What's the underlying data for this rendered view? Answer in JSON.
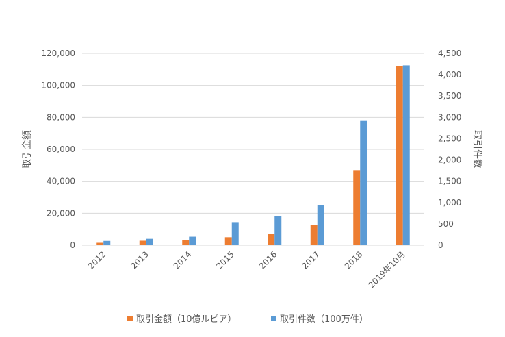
{
  "chart_data": {
    "type": "bar",
    "categories": [
      "2012",
      "2013",
      "2014",
      "2015",
      "2016",
      "2017",
      "2018",
      "2019年10月"
    ],
    "series": [
      {
        "name": "取引金額（10億ルピア）",
        "axis": "left",
        "color": "#ED7D31",
        "values": [
          1500,
          2800,
          3300,
          5000,
          7000,
          12500,
          47000,
          112000
        ]
      },
      {
        "name": "取引件数（100万件）",
        "axis": "right",
        "color": "#5B9BD5",
        "values": [
          100,
          150,
          200,
          540,
          690,
          940,
          2930,
          4220
        ]
      }
    ],
    "ylabel": "取引金額",
    "y2label": "取引件数",
    "ylim": [
      0,
      120000
    ],
    "y2lim": [
      0,
      4500
    ],
    "yticks": [
      "0",
      "20,000",
      "40,000",
      "60,000",
      "80,000",
      "100,000",
      "120,000"
    ],
    "y2ticks": [
      "0",
      "500",
      "1,000",
      "1,500",
      "2,000",
      "2,500",
      "3,000",
      "3,500",
      "4,000",
      "4,500"
    ],
    "grid": true,
    "legend_position": "bottom"
  }
}
